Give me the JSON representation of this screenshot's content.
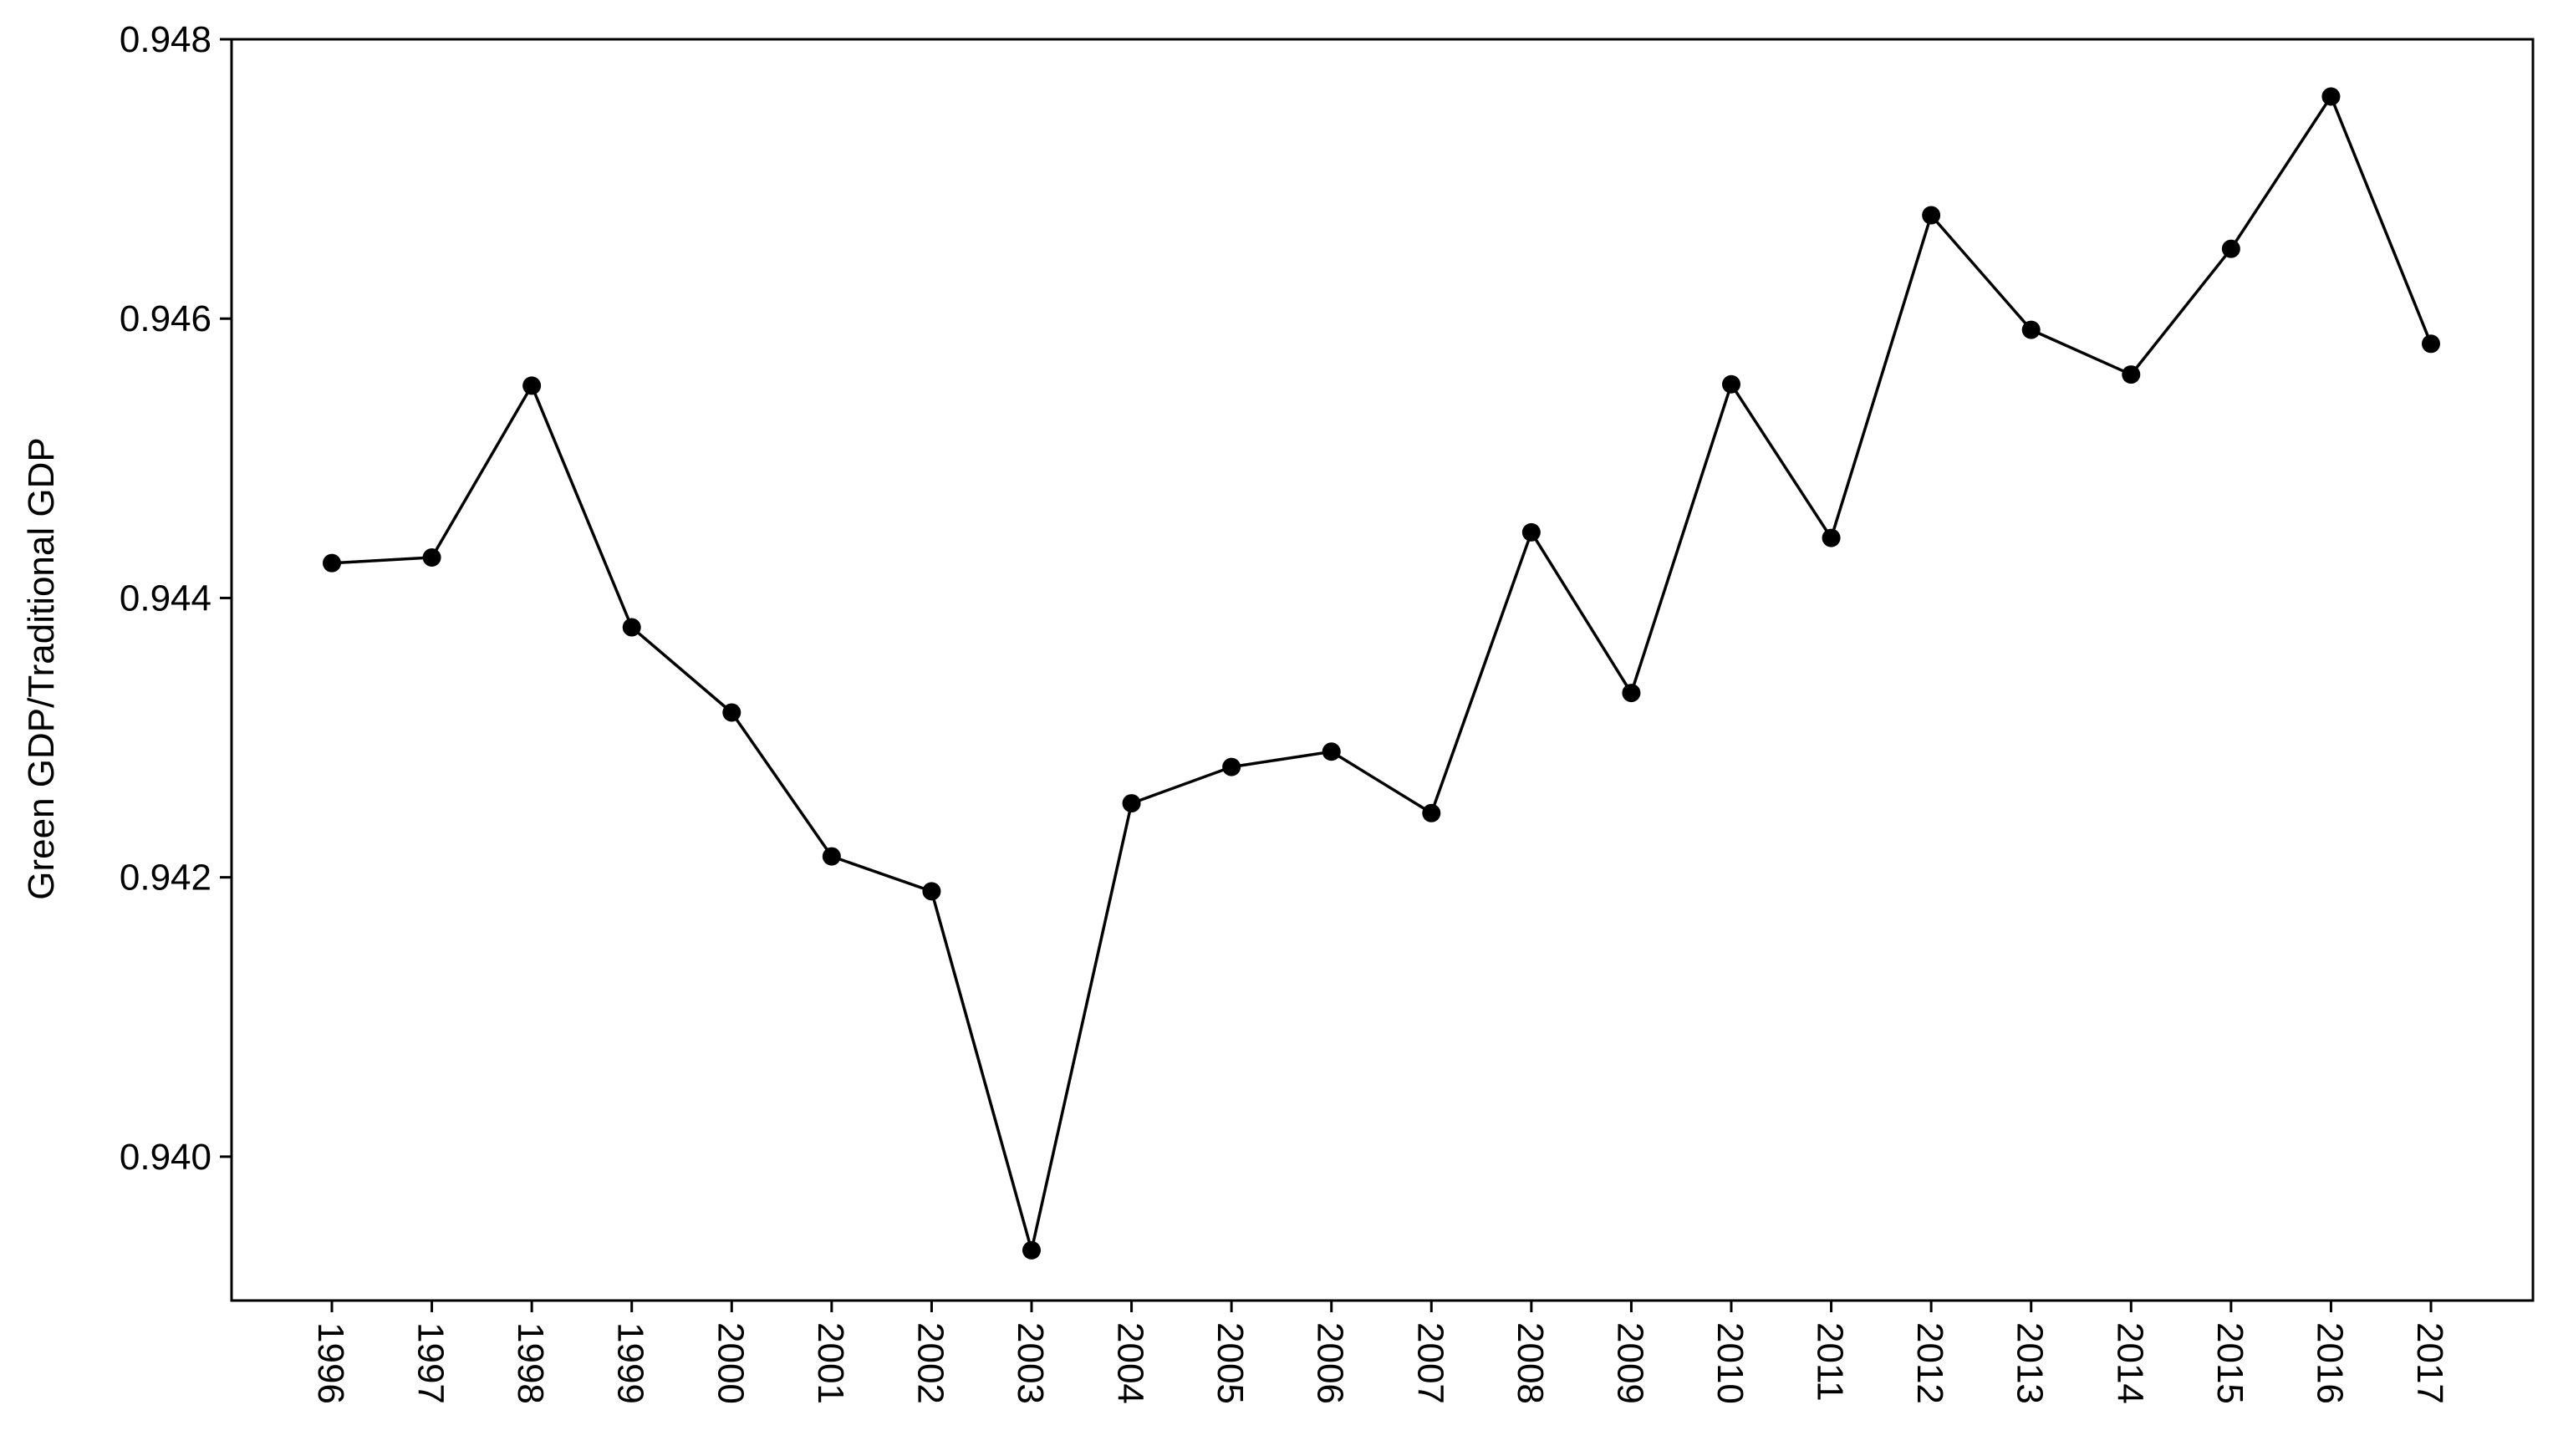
{
  "chart_data": {
    "type": "line",
    "title": "",
    "xlabel": "",
    "ylabel": "Green GDP/Traditional GDP",
    "x": [
      "1996",
      "1997",
      "1998",
      "1999",
      "2000",
      "2001",
      "2002",
      "2003",
      "2004",
      "2005",
      "2006",
      "2007",
      "2008",
      "2009",
      "2010",
      "2011",
      "2012",
      "2013",
      "2014",
      "2015",
      "2016",
      "2017"
    ],
    "series": [
      {
        "values": [
          0.94425,
          0.94429,
          0.94552,
          0.94379,
          0.94318,
          0.94215,
          0.9419,
          0.93933,
          0.94253,
          0.94279,
          0.9429,
          0.94246,
          0.94447,
          0.94332,
          0.94553,
          0.94443,
          0.94674,
          0.94592,
          0.9456,
          0.9465,
          0.94759,
          0.94582
        ],
        "color": "#000000"
      }
    ],
    "yticks": [
      "0.940",
      "0.942",
      "0.944",
      "0.946",
      "0.948"
    ],
    "ylim": [
      0.93897,
      0.948
    ],
    "grid": false,
    "legend": "none"
  }
}
